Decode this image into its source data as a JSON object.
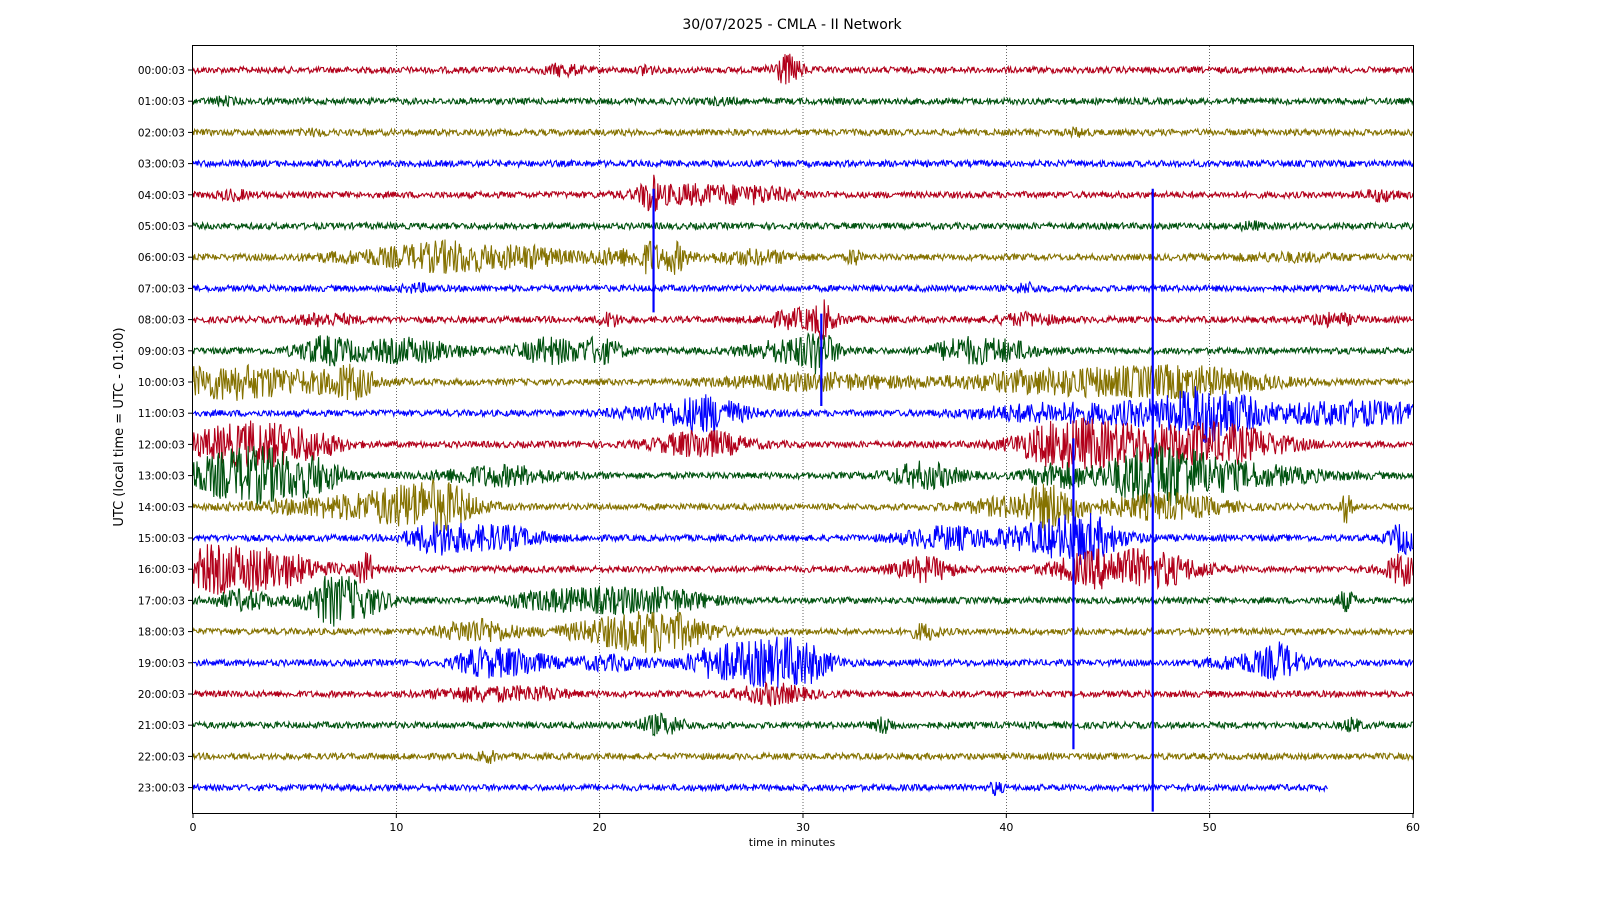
{
  "chart_data": {
    "type": "line",
    "title": "30/07/2025 - CMLA - II Network",
    "xlabel": "time in minutes",
    "ylabel": "UTC (local time = UTC - 01:00)",
    "xlim": [
      0,
      60
    ],
    "xticks": [
      "0",
      "10",
      "20",
      "30",
      "40",
      "50",
      "60"
    ],
    "grid": "vertical dotted at x ticks",
    "colors": [
      "#b2001a",
      "#00520f",
      "#857200",
      "#0000ff"
    ],
    "traces": [
      {
        "label": "00:00:03",
        "end_minute": 60
      },
      {
        "label": "01:00:03",
        "end_minute": 60
      },
      {
        "label": "02:00:03",
        "end_minute": 60
      },
      {
        "label": "03:00:03",
        "end_minute": 60
      },
      {
        "label": "04:00:03",
        "end_minute": 60
      },
      {
        "label": "05:00:03",
        "end_minute": 60
      },
      {
        "label": "06:00:03",
        "end_minute": 60
      },
      {
        "label": "07:00:03",
        "end_minute": 60
      },
      {
        "label": "08:00:03",
        "end_minute": 60
      },
      {
        "label": "09:00:03",
        "end_minute": 60
      },
      {
        "label": "10:00:03",
        "end_minute": 60
      },
      {
        "label": "11:00:03",
        "end_minute": 60
      },
      {
        "label": "12:00:03",
        "end_minute": 60
      },
      {
        "label": "13:00:03",
        "end_minute": 60
      },
      {
        "label": "14:00:03",
        "end_minute": 60
      },
      {
        "label": "15:00:03",
        "end_minute": 60
      },
      {
        "label": "16:00:03",
        "end_minute": 60
      },
      {
        "label": "17:00:03",
        "end_minute": 60
      },
      {
        "label": "18:00:03",
        "end_minute": 60
      },
      {
        "label": "19:00:03",
        "end_minute": 60
      },
      {
        "label": "20:00:03",
        "end_minute": 60
      },
      {
        "label": "21:00:03",
        "end_minute": 60
      },
      {
        "label": "22:00:03",
        "end_minute": 60
      },
      {
        "label": "23:00:03",
        "end_minute": 55.8
      }
    ]
  }
}
